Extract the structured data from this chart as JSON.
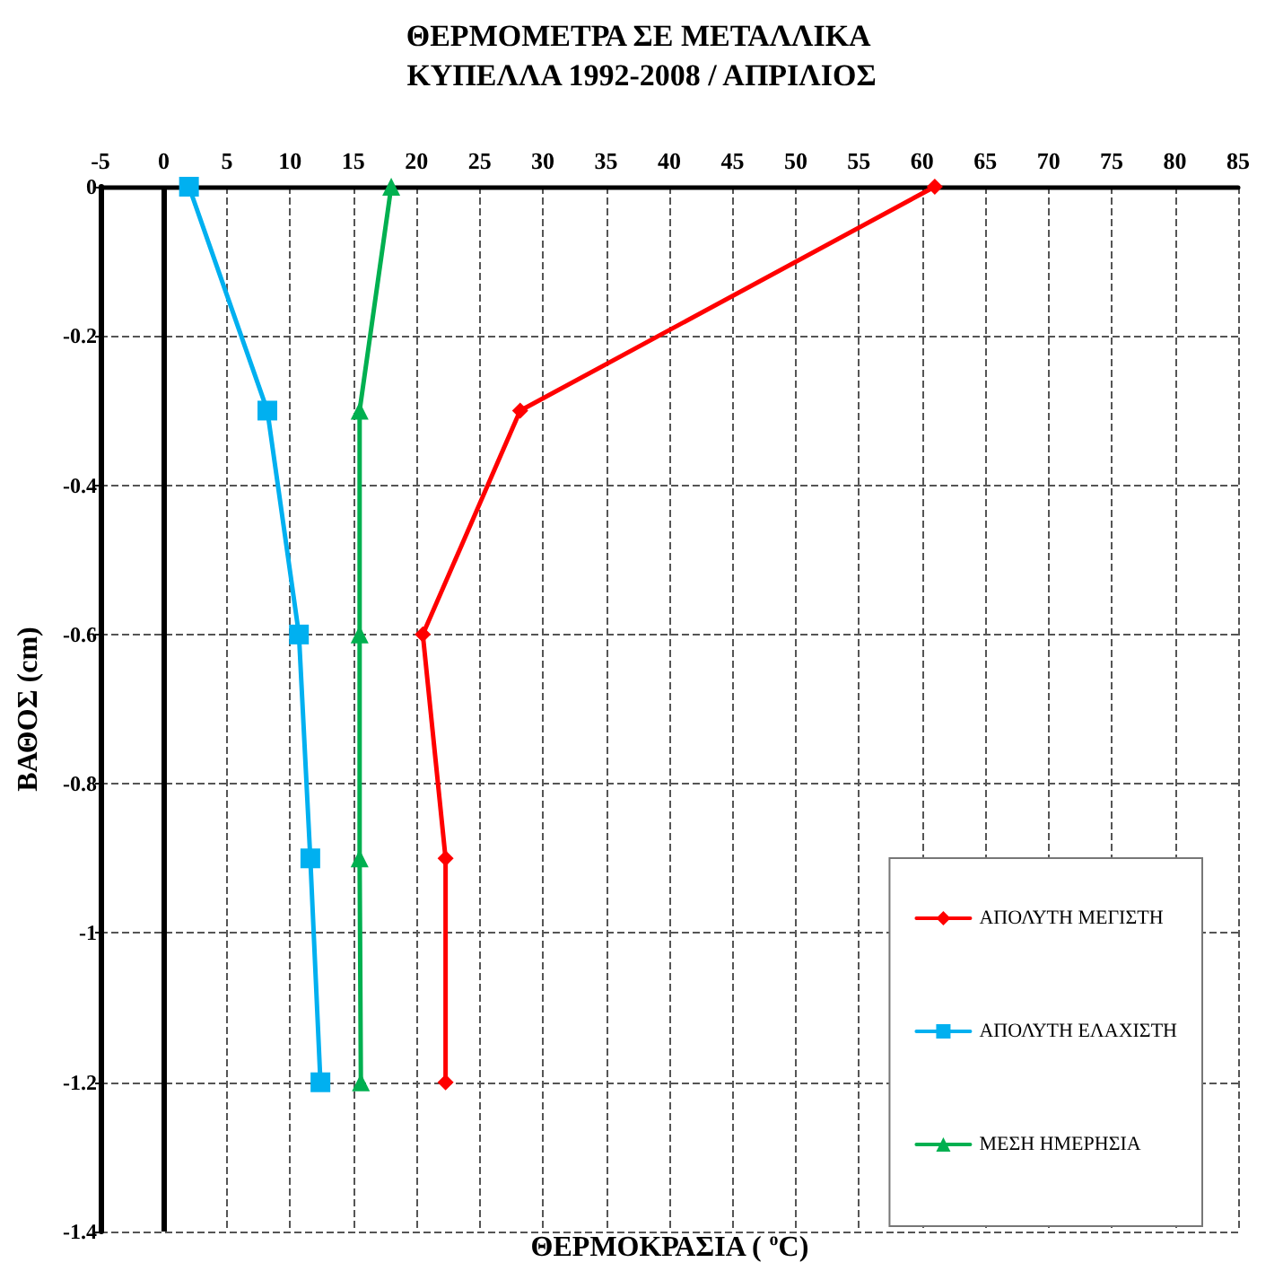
{
  "chart_data": {
    "type": "line",
    "title": "ΘΕΡΜΟΜΕΤΡΑ ΣΕ ΜΕΤΑΛΛΙΚΑ ΚΥΠΕΛΛΑ 1992-2008 / ΑΠΡΙΛΙΟΣ",
    "xlabel": "ΘΕΡΜΟΚΡΑΣΙΑ ( $^{o}$C)",
    "ylabel": "ΒΑΘΟΣ (cm)",
    "series": [
      {
        "name": "ΑΠΟΛΥΤΗ ΜΕΓΙΣΤΗ",
        "color": "#ff0000",
        "marker": "diamond",
        "x": [
          61,
          28.2,
          20.5,
          22.3,
          22.3
        ],
        "values": [
          0,
          -0.3,
          -0.6,
          -0.9,
          -1.2
        ]
      },
      {
        "name": "ΑΠΟΛΥΤΗ ΕΛΑΧΙΣΤΗ",
        "color": "#00b0f0",
        "marker": "square",
        "x": [
          2,
          8.2,
          10.7,
          11.6,
          12.4
        ],
        "values": [
          0,
          -0.3,
          -0.6,
          -0.9,
          -1.2
        ]
      },
      {
        "name": "ΜΕΣΗ ΗΜΕΡΗΣΙΑ",
        "color": "#00b050",
        "marker": "triangle",
        "x": [
          18,
          15.5,
          15.5,
          15.5,
          15.6
        ],
        "values": [
          0,
          -0.3,
          -0.6,
          -0.9,
          -1.2
        ]
      }
    ],
    "xlim": [
      -5,
      85
    ],
    "xticks": [
      -5,
      0,
      5,
      10,
      15,
      20,
      25,
      30,
      35,
      40,
      45,
      50,
      55,
      60,
      65,
      70,
      75,
      80,
      85
    ],
    "ylim": [
      -1.4,
      0
    ],
    "yticks": [
      -1.4,
      -1.2,
      -1,
      -0.8,
      -0.6,
      -0.4,
      -0.2,
      0
    ],
    "ref_lines": [
      {
        "axis": "x",
        "value": 0,
        "color": "#000000"
      }
    ],
    "grid": true,
    "legend": "bottom right",
    "line_style": "solid"
  }
}
